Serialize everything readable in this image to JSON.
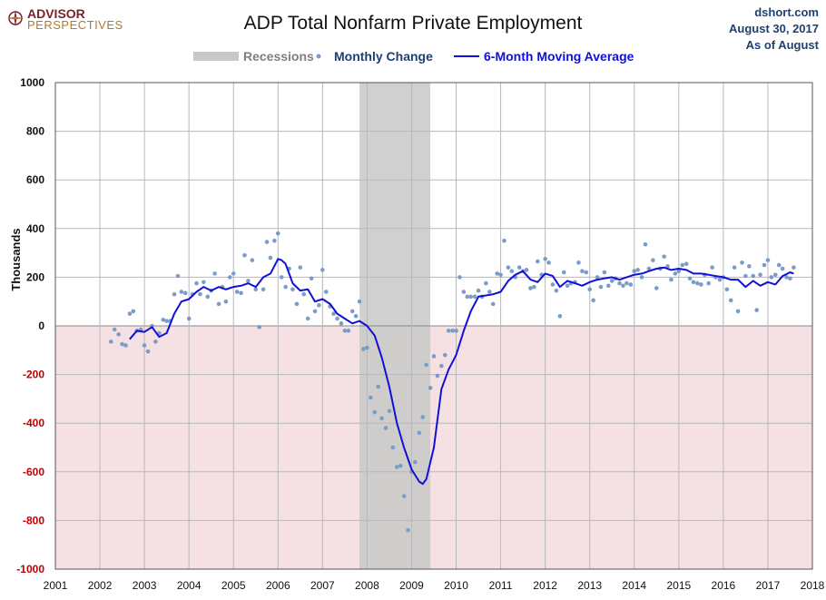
{
  "logo": {
    "line1": "ADVISOR",
    "line2": "PERSPECTIVES"
  },
  "title": "ADP Total Nonfarm Private Employment",
  "source": {
    "site": "dshort.com",
    "date": "August 30, 2017",
    "asof": "As of August"
  },
  "legend": {
    "recessions": "Recessions",
    "monthly": "Monthly Change",
    "ma": "6-Month Moving Average"
  },
  "colors": {
    "recession": "#c8c8c8",
    "monthly": "#7a9cc8",
    "ma": "#1010d8",
    "negative_zone": "#f5e1e3",
    "negative_tick": "#c00000"
  },
  "chart_data": {
    "type": "line",
    "title": "ADP Total Nonfarm Private Employment",
    "ylabel": "Thousands",
    "xlabel": "",
    "ylim": [
      -1000,
      1000
    ],
    "xlim": [
      2001,
      2018
    ],
    "yticks": [
      "1000",
      "800",
      "600",
      "400",
      "200",
      "0",
      "-200",
      "-400",
      "-600",
      "-800",
      "-1000"
    ],
    "xticks": [
      "2001",
      "2002",
      "2003",
      "2004",
      "2005",
      "2006",
      "2007",
      "2008",
      "2009",
      "2010",
      "2011",
      "2012",
      "2013",
      "2014",
      "2015",
      "2016",
      "2017",
      "2018"
    ],
    "grid": true,
    "legend_position": "top",
    "recessions": [
      {
        "start": 2007.83,
        "end": 2009.42
      }
    ],
    "series": [
      {
        "name": "Monthly Change",
        "style": "points",
        "x": [
          2002.25,
          2002.33,
          2002.42,
          2002.5,
          2002.58,
          2002.67,
          2002.75,
          2002.83,
          2002.92,
          2003.0,
          2003.08,
          2003.17,
          2003.25,
          2003.33,
          2003.42,
          2003.5,
          2003.58,
          2003.67,
          2003.75,
          2003.83,
          2003.92,
          2004.0,
          2004.08,
          2004.17,
          2004.25,
          2004.33,
          2004.42,
          2004.5,
          2004.58,
          2004.67,
          2004.75,
          2004.83,
          2004.92,
          2005.0,
          2005.08,
          2005.17,
          2005.25,
          2005.33,
          2005.42,
          2005.5,
          2005.58,
          2005.67,
          2005.75,
          2005.83,
          2005.92,
          2006.0,
          2006.08,
          2006.17,
          2006.25,
          2006.33,
          2006.42,
          2006.5,
          2006.58,
          2006.67,
          2006.75,
          2006.83,
          2006.92,
          2007.0,
          2007.08,
          2007.17,
          2007.25,
          2007.33,
          2007.42,
          2007.5,
          2007.58,
          2007.67,
          2007.75,
          2007.83,
          2007.92,
          2008.0,
          2008.08,
          2008.17,
          2008.25,
          2008.33,
          2008.42,
          2008.5,
          2008.58,
          2008.67,
          2008.75,
          2008.83,
          2008.92,
          2009.0,
          2009.08,
          2009.17,
          2009.25,
          2009.33,
          2009.42,
          2009.5,
          2009.58,
          2009.67,
          2009.75,
          2009.83,
          2009.92,
          2010.0,
          2010.08,
          2010.17,
          2010.25,
          2010.33,
          2010.42,
          2010.5,
          2010.58,
          2010.67,
          2010.75,
          2010.83,
          2010.92,
          2011.0,
          2011.08,
          2011.17,
          2011.25,
          2011.33,
          2011.42,
          2011.5,
          2011.58,
          2011.67,
          2011.75,
          2011.83,
          2011.92,
          2012.0,
          2012.08,
          2012.17,
          2012.25,
          2012.33,
          2012.42,
          2012.5,
          2012.58,
          2012.67,
          2012.75,
          2012.83,
          2012.92,
          2013.0,
          2013.08,
          2013.17,
          2013.25,
          2013.33,
          2013.42,
          2013.5,
          2013.58,
          2013.67,
          2013.75,
          2013.83,
          2013.92,
          2014.0,
          2014.08,
          2014.17,
          2014.25,
          2014.33,
          2014.42,
          2014.5,
          2014.58,
          2014.67,
          2014.75,
          2014.83,
          2014.92,
          2015.0,
          2015.08,
          2015.17,
          2015.25,
          2015.33,
          2015.42,
          2015.5,
          2015.58,
          2015.67,
          2015.75,
          2015.83,
          2015.92,
          2016.0,
          2016.08,
          2016.17,
          2016.25,
          2016.33,
          2016.42,
          2016.5,
          2016.58,
          2016.67,
          2016.75,
          2016.83,
          2016.92,
          2017.0,
          2017.08,
          2017.17,
          2017.25,
          2017.33,
          2017.42,
          2017.5,
          2017.58
        ],
        "values": [
          -65,
          -15,
          -35,
          -75,
          -80,
          50,
          60,
          -20,
          -15,
          -80,
          -105,
          0,
          -65,
          -30,
          25,
          20,
          20,
          130,
          205,
          140,
          135,
          30,
          130,
          175,
          130,
          180,
          120,
          145,
          215,
          90,
          160,
          100,
          200,
          215,
          140,
          135,
          290,
          185,
          270,
          150,
          -5,
          150,
          345,
          280,
          350,
          380,
          200,
          160,
          235,
          150,
          90,
          240,
          130,
          30,
          195,
          60,
          85,
          230,
          140,
          80,
          50,
          30,
          10,
          -20,
          -20,
          60,
          40,
          100,
          -95,
          -90,
          -295,
          -355,
          -250,
          -380,
          -420,
          -350,
          -500,
          -580,
          -575,
          -700,
          -840,
          -600,
          -560,
          -440,
          -375,
          -160,
          -255,
          -125,
          -205,
          -165,
          -120,
          -20,
          -20,
          -20,
          200,
          140,
          120,
          120,
          120,
          145,
          120,
          175,
          140,
          90,
          215,
          210,
          350,
          240,
          225,
          200,
          240,
          225,
          230,
          155,
          160,
          265,
          210,
          275,
          260,
          170,
          145,
          40,
          220,
          165,
          175,
          180,
          260,
          225,
          220,
          150,
          105,
          200,
          160,
          220,
          165,
          185,
          195,
          175,
          165,
          175,
          170,
          225,
          230,
          200,
          335,
          235,
          270,
          155,
          235,
          285,
          245,
          190,
          215,
          225,
          250,
          255,
          195,
          180,
          175,
          170,
          210,
          175,
          240,
          200,
          190,
          200,
          150,
          105,
          240,
          60,
          260,
          205,
          245,
          205,
          65,
          210,
          250,
          270,
          200,
          210,
          250,
          235,
          200,
          195,
          240
        ]
      },
      {
        "name": "6-Month Moving Average",
        "style": "line",
        "x": [
          2002.67,
          2002.83,
          2003.0,
          2003.17,
          2003.33,
          2003.5,
          2003.67,
          2003.83,
          2004.0,
          2004.17,
          2004.33,
          2004.5,
          2004.67,
          2004.83,
          2005.0,
          2005.17,
          2005.33,
          2005.5,
          2005.67,
          2005.83,
          2006.0,
          2006.08,
          2006.17,
          2006.33,
          2006.5,
          2006.67,
          2006.83,
          2007.0,
          2007.17,
          2007.33,
          2007.5,
          2007.67,
          2007.83,
          2008.0,
          2008.17,
          2008.33,
          2008.5,
          2008.67,
          2008.83,
          2009.0,
          2009.17,
          2009.25,
          2009.33,
          2009.5,
          2009.67,
          2009.83,
          2010.0,
          2010.17,
          2010.33,
          2010.5,
          2010.67,
          2010.83,
          2011.0,
          2011.17,
          2011.33,
          2011.5,
          2011.67,
          2011.83,
          2012.0,
          2012.17,
          2012.33,
          2012.5,
          2012.67,
          2012.83,
          2013.0,
          2013.17,
          2013.33,
          2013.5,
          2013.67,
          2013.83,
          2014.0,
          2014.17,
          2014.33,
          2014.5,
          2014.67,
          2014.83,
          2015.0,
          2015.17,
          2015.33,
          2015.5,
          2015.67,
          2015.83,
          2016.0,
          2016.17,
          2016.33,
          2016.5,
          2016.67,
          2016.83,
          2017.0,
          2017.17,
          2017.33,
          2017.5,
          2017.58
        ],
        "values": [
          -55,
          -20,
          -25,
          -5,
          -45,
          -30,
          50,
          100,
          110,
          140,
          160,
          145,
          160,
          150,
          160,
          165,
          175,
          160,
          200,
          215,
          275,
          270,
          255,
          175,
          145,
          150,
          100,
          110,
          90,
          50,
          30,
          10,
          20,
          0,
          -40,
          -130,
          -250,
          -400,
          -500,
          -590,
          -640,
          -650,
          -630,
          -500,
          -260,
          -180,
          -120,
          -20,
          60,
          120,
          125,
          130,
          140,
          185,
          210,
          225,
          190,
          180,
          215,
          205,
          160,
          185,
          175,
          165,
          180,
          190,
          195,
          200,
          190,
          200,
          210,
          215,
          225,
          235,
          240,
          230,
          235,
          230,
          215,
          215,
          210,
          205,
          200,
          190,
          190,
          160,
          185,
          165,
          180,
          170,
          205,
          220,
          215
        ]
      }
    ]
  }
}
